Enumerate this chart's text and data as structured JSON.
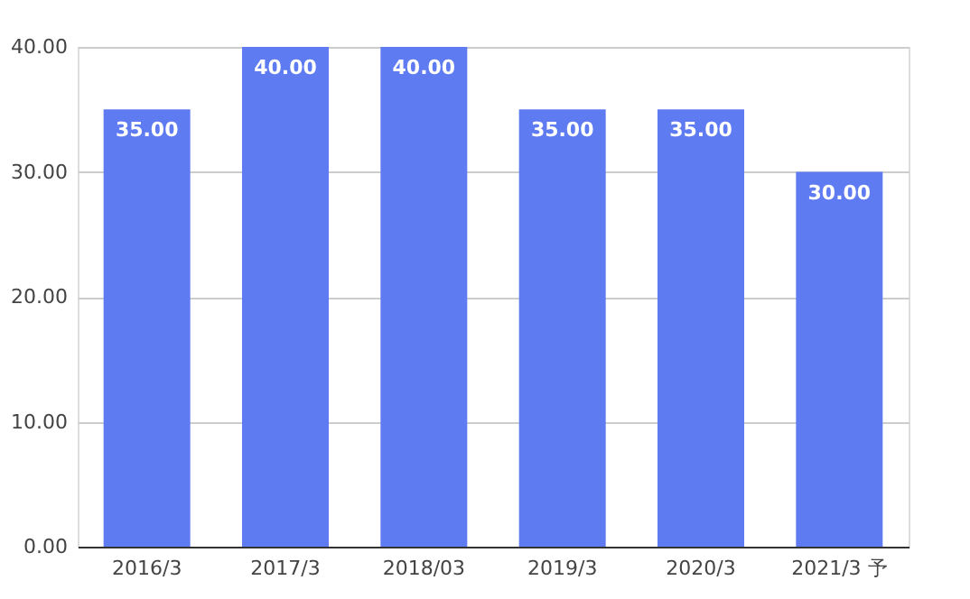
{
  "chart_data": {
    "type": "bar",
    "categories": [
      "2016/3",
      "2017/3",
      "2018/03",
      "2019/3",
      "2020/3",
      "2021/3 予"
    ],
    "values": [
      35,
      40,
      40,
      35,
      35,
      30
    ],
    "value_labels": [
      "35.00",
      "40.00",
      "40.00",
      "35.00",
      "35.00",
      "30.00"
    ],
    "color": "#5f7bf2",
    "ylim": [
      0,
      40
    ],
    "yticks": [
      {
        "value": 0,
        "label": "0.00"
      },
      {
        "value": 10,
        "label": "10.00"
      },
      {
        "value": 20,
        "label": "20.00"
      },
      {
        "value": 30,
        "label": "30.00"
      },
      {
        "value": 40,
        "label": "40.00"
      }
    ],
    "grid": "y"
  }
}
